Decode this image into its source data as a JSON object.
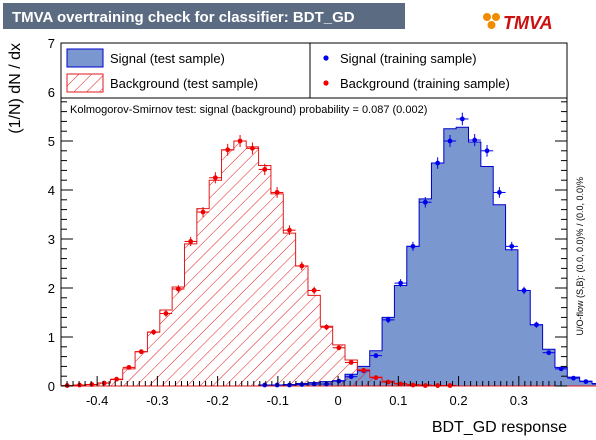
{
  "title": "TMVA overtraining check for classifier: BDT_GD",
  "logo_text": "TMVA",
  "ks_text": "Kolmogorov-Smirnov test: signal (background) probability = 0.087 (0.002)",
  "side_text": "U/O-flow (S,B): (0.0, 0.0)% / (0.0, 0.0)%",
  "legend": {
    "signal_test": "Signal (test sample)",
    "background_test": "Background (test sample)",
    "signal_train": "Signal (training sample)",
    "background_train": "Background (training sample)"
  },
  "colors": {
    "signal_fill": "#7b97d0",
    "signal_line": "#0000cc",
    "background_line": "#e31a1c",
    "signal_marker": "#0000ee",
    "background_marker": "#ee0000",
    "title_bg": "#5a6b82"
  },
  "chart_data": {
    "type": "histogram",
    "xlabel": "BDT_GD response",
    "ylabel": "(1/N) dN / dx",
    "xlim": [
      -0.46,
      0.38
    ],
    "ylim": [
      0,
      7
    ],
    "xticks": [
      "-0.4",
      "-0.3",
      "-0.2",
      "-0.1",
      "0",
      "0.1",
      "0.2",
      "0.3"
    ],
    "xtick_values": [
      -0.4,
      -0.3,
      -0.2,
      -0.1,
      0,
      0.1,
      0.2,
      0.3
    ],
    "yticks": [
      "0",
      "1",
      "2",
      "3",
      "4",
      "5",
      "6",
      "7"
    ],
    "yticks_values": [
      0,
      1,
      2,
      3,
      4,
      5,
      6,
      7
    ],
    "bin_edges_start": -0.46,
    "bin_width": 0.0205,
    "series": [
      {
        "name": "Signal (test sample)",
        "style": "filled",
        "values": [
          0,
          0,
          0,
          0,
          0,
          0,
          0,
          0,
          0,
          0,
          0,
          0,
          0,
          0,
          0,
          0,
          0.02,
          0.02,
          0.03,
          0.05,
          0.07,
          0.09,
          0.11,
          0.24,
          0.4,
          0.72,
          1.4,
          2.05,
          2.85,
          3.82,
          4.55,
          5.25,
          5.28,
          4.98,
          4.48,
          3.7,
          2.78,
          1.95,
          1.25,
          0.75,
          0.38,
          0.18,
          0.1,
          0.05
        ]
      },
      {
        "name": "Background (test sample)",
        "style": "hatched",
        "values": [
          0.01,
          0.02,
          0.03,
          0.06,
          0.13,
          0.35,
          0.7,
          1.1,
          1.55,
          2.02,
          2.9,
          3.62,
          4.2,
          4.82,
          5.0,
          4.88,
          4.5,
          3.92,
          3.12,
          2.45,
          1.85,
          1.22,
          0.84,
          0.53,
          0.33,
          0.18,
          0.1,
          0.05,
          0.03,
          0.02,
          0.01,
          0.01,
          0,
          0,
          0,
          0,
          0,
          0,
          0,
          0,
          0,
          0,
          0,
          0
        ]
      },
      {
        "name": "Signal (training sample)",
        "style": "markers",
        "values": [
          0,
          0,
          0,
          0,
          0,
          0,
          0,
          0,
          0,
          0,
          0,
          0,
          0,
          0,
          0,
          0,
          0.02,
          0.02,
          0.02,
          0.03,
          0.04,
          0.04,
          0.1,
          0.19,
          0.31,
          0.62,
          1.35,
          2.1,
          2.85,
          3.75,
          4.55,
          5.0,
          5.45,
          5.02,
          4.8,
          3.95,
          2.85,
          1.95,
          1.25,
          0.68,
          0.35,
          0.16,
          0.09,
          0.04
        ]
      },
      {
        "name": "Background (training sample)",
        "style": "markers",
        "values": [
          0.01,
          0.02,
          0.03,
          0.06,
          0.14,
          0.38,
          0.7,
          1.1,
          1.48,
          1.98,
          2.95,
          3.55,
          4.25,
          4.82,
          5.0,
          4.85,
          4.42,
          3.95,
          3.18,
          2.45,
          1.95,
          1.2,
          0.78,
          0.48,
          0.32,
          0.17,
          0.08,
          0.04,
          0.02,
          0.01,
          0.01,
          0.01,
          0,
          0,
          0,
          0,
          0,
          0,
          0,
          0,
          0,
          0,
          0,
          0
        ]
      }
    ],
    "legend_position": "top"
  }
}
